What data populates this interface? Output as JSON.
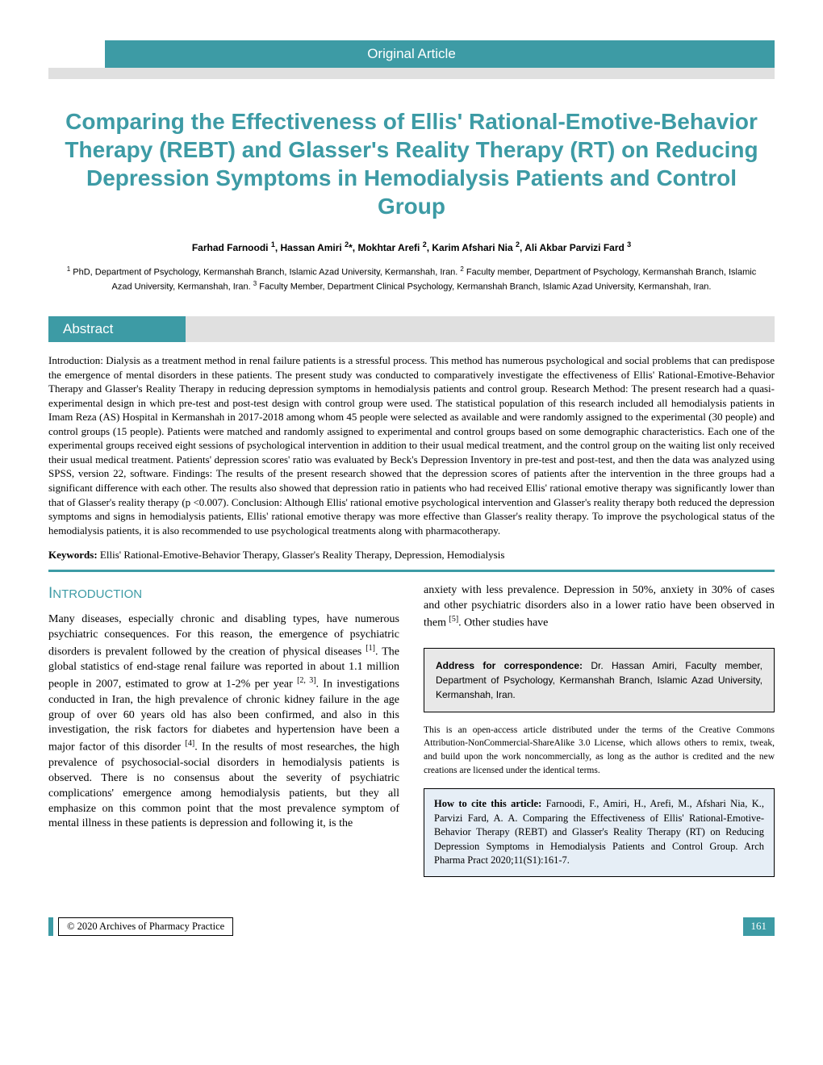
{
  "banner": {
    "label": "Original Article"
  },
  "title": "Comparing the Effectiveness of Ellis' Rational-Emotive-Behavior Therapy (REBT) and Glasser's Reality Therapy (RT) on Reducing Depression Symptoms in Hemodialysis Patients and Control Group",
  "authors_html": "Farhad Farnoodi <sup>1</sup>, Hassan Amiri <sup>2</sup>*, Mokhtar Arefi <sup>2</sup>, Karim Afshari Nia <sup>2</sup>, Ali Akbar Parvizi Fard <sup>3</sup>",
  "affiliations_html": "<sup>1</sup> PhD, Department of Psychology, Kermanshah Branch, Islamic Azad University, Kermanshah, Iran. <sup>2</sup> Faculty member, Department of Psychology, Kermanshah Branch, Islamic Azad University, Kermanshah, Iran. <sup>3</sup> Faculty Member, Department Clinical Psychology, Kermanshah Branch, Islamic Azad University, Kermanshah, Iran.",
  "abstract": {
    "label": "Abstract",
    "body": "Introduction: Dialysis as a treatment method in renal failure patients is a stressful process. This method has numerous psychological and social problems that can predispose the emergence of mental disorders in these patients. The present study was conducted to comparatively investigate the effectiveness of Ellis' Rational-Emotive-Behavior Therapy and Glasser's Reality Therapy in reducing depression symptoms in hemodialysis patients and control group. Research Method: The present research had a quasi-experimental design in which pre-test and post-test design with control group were used. The statistical population of this research included all hemodialysis patients in Imam Reza (AS) Hospital in Kermanshah in 2017-2018 among whom 45 people were selected as available and were randomly assigned to the experimental (30 people) and control groups (15 people). Patients were matched and randomly assigned to experimental and control groups based on some demographic characteristics. Each one of the experimental groups received eight sessions of psychological intervention in addition to their usual medical treatment, and the control group on the waiting list only received their usual medical treatment. Patients' depression scores' ratio was evaluated by Beck's Depression Inventory in pre-test and post-test, and then the data was analyzed using SPSS, version 22, software. Findings: The results of the present research showed that the depression scores of patients after the intervention in the three groups had a significant difference with each other. The results also showed that depression ratio in patients who had received Ellis' rational emotive therapy was significantly lower than that of Glasser's reality therapy (p <0.007). Conclusion: Although Ellis' rational emotive psychological intervention and Glasser's reality therapy both reduced the depression symptoms and signs in hemodialysis patients, Ellis' rational emotive therapy was more effective than Glasser's reality therapy. To improve the psychological status of the hemodialysis patients, it is also recommended to use psychological treatments along with pharmacotherapy.",
    "keywords_label": "Keywords:",
    "keywords": " Ellis' Rational-Emotive-Behavior Therapy, Glasser's Reality Therapy, Depression, Hemodialysis"
  },
  "introduction": {
    "heading_cap": "I",
    "heading_rest": "NTRODUCTION",
    "left_html": "Many diseases, especially chronic and disabling types, have numerous psychiatric consequences. For this reason, the emergence of psychiatric disorders is prevalent followed by the creation of physical diseases <sup>[1]</sup>. The global statistics of end-stage renal failure was reported in about 1.1 million people in 2007, estimated to grow at 1-2% per year <sup>[2, 3]</sup>. In investigations conducted in Iran, the high prevalence of chronic kidney failure in the age group of over 60 years old has also been confirmed, and also in this investigation, the risk factors for diabetes and hypertension have been a major factor of this disorder <sup>[4]</sup>. In the results of most researches, the high prevalence of psychosocial-social disorders in hemodialysis patients is observed. There is no consensus about the severity of psychiatric complications' emergence among hemodialysis patients, but they all emphasize on this common point that the most prevalence symptom of mental illness in these patients is depression and following it, is the",
    "right_html": "anxiety with less prevalence. Depression in 50%, anxiety in 30% of cases and other psychiatric disorders also in a lower ratio have been observed in them <sup>[5]</sup>. Other studies have"
  },
  "correspondence": {
    "label": "Address for correspondence:",
    "text": " Dr. Hassan Amiri, Faculty member, Department of Psychology, Kermanshah Branch, Islamic Azad University, Kermanshah, Iran."
  },
  "license": "This is an open-access article distributed under the terms of the Creative Commons Attribution-NonCommercial-ShareAlike 3.0 License, which allows others to remix, tweak, and build upon the work noncommercially, as long as the author is credited and the new creations are licensed under the identical terms.",
  "citation": {
    "label": "How to cite this article:",
    "text": " Farnoodi, F., Amiri, H., Arefi, M., Afshari Nia, K., Parvizi Fard, A. A. Comparing the Effectiveness of Ellis' Rational-Emotive-Behavior Therapy (REBT) and Glasser's Reality Therapy (RT) on Reducing Depression Symptoms in Hemodialysis Patients and Control Group. Arch Pharma Pract 2020;11(S1):161-7."
  },
  "footer": {
    "copyright": "© 2020 Archives of Pharmacy Practice",
    "page": "161"
  },
  "colors": {
    "teal": "#3d9ba5",
    "grey": "#e0e0e0",
    "cite_bg": "#e6eef6"
  }
}
